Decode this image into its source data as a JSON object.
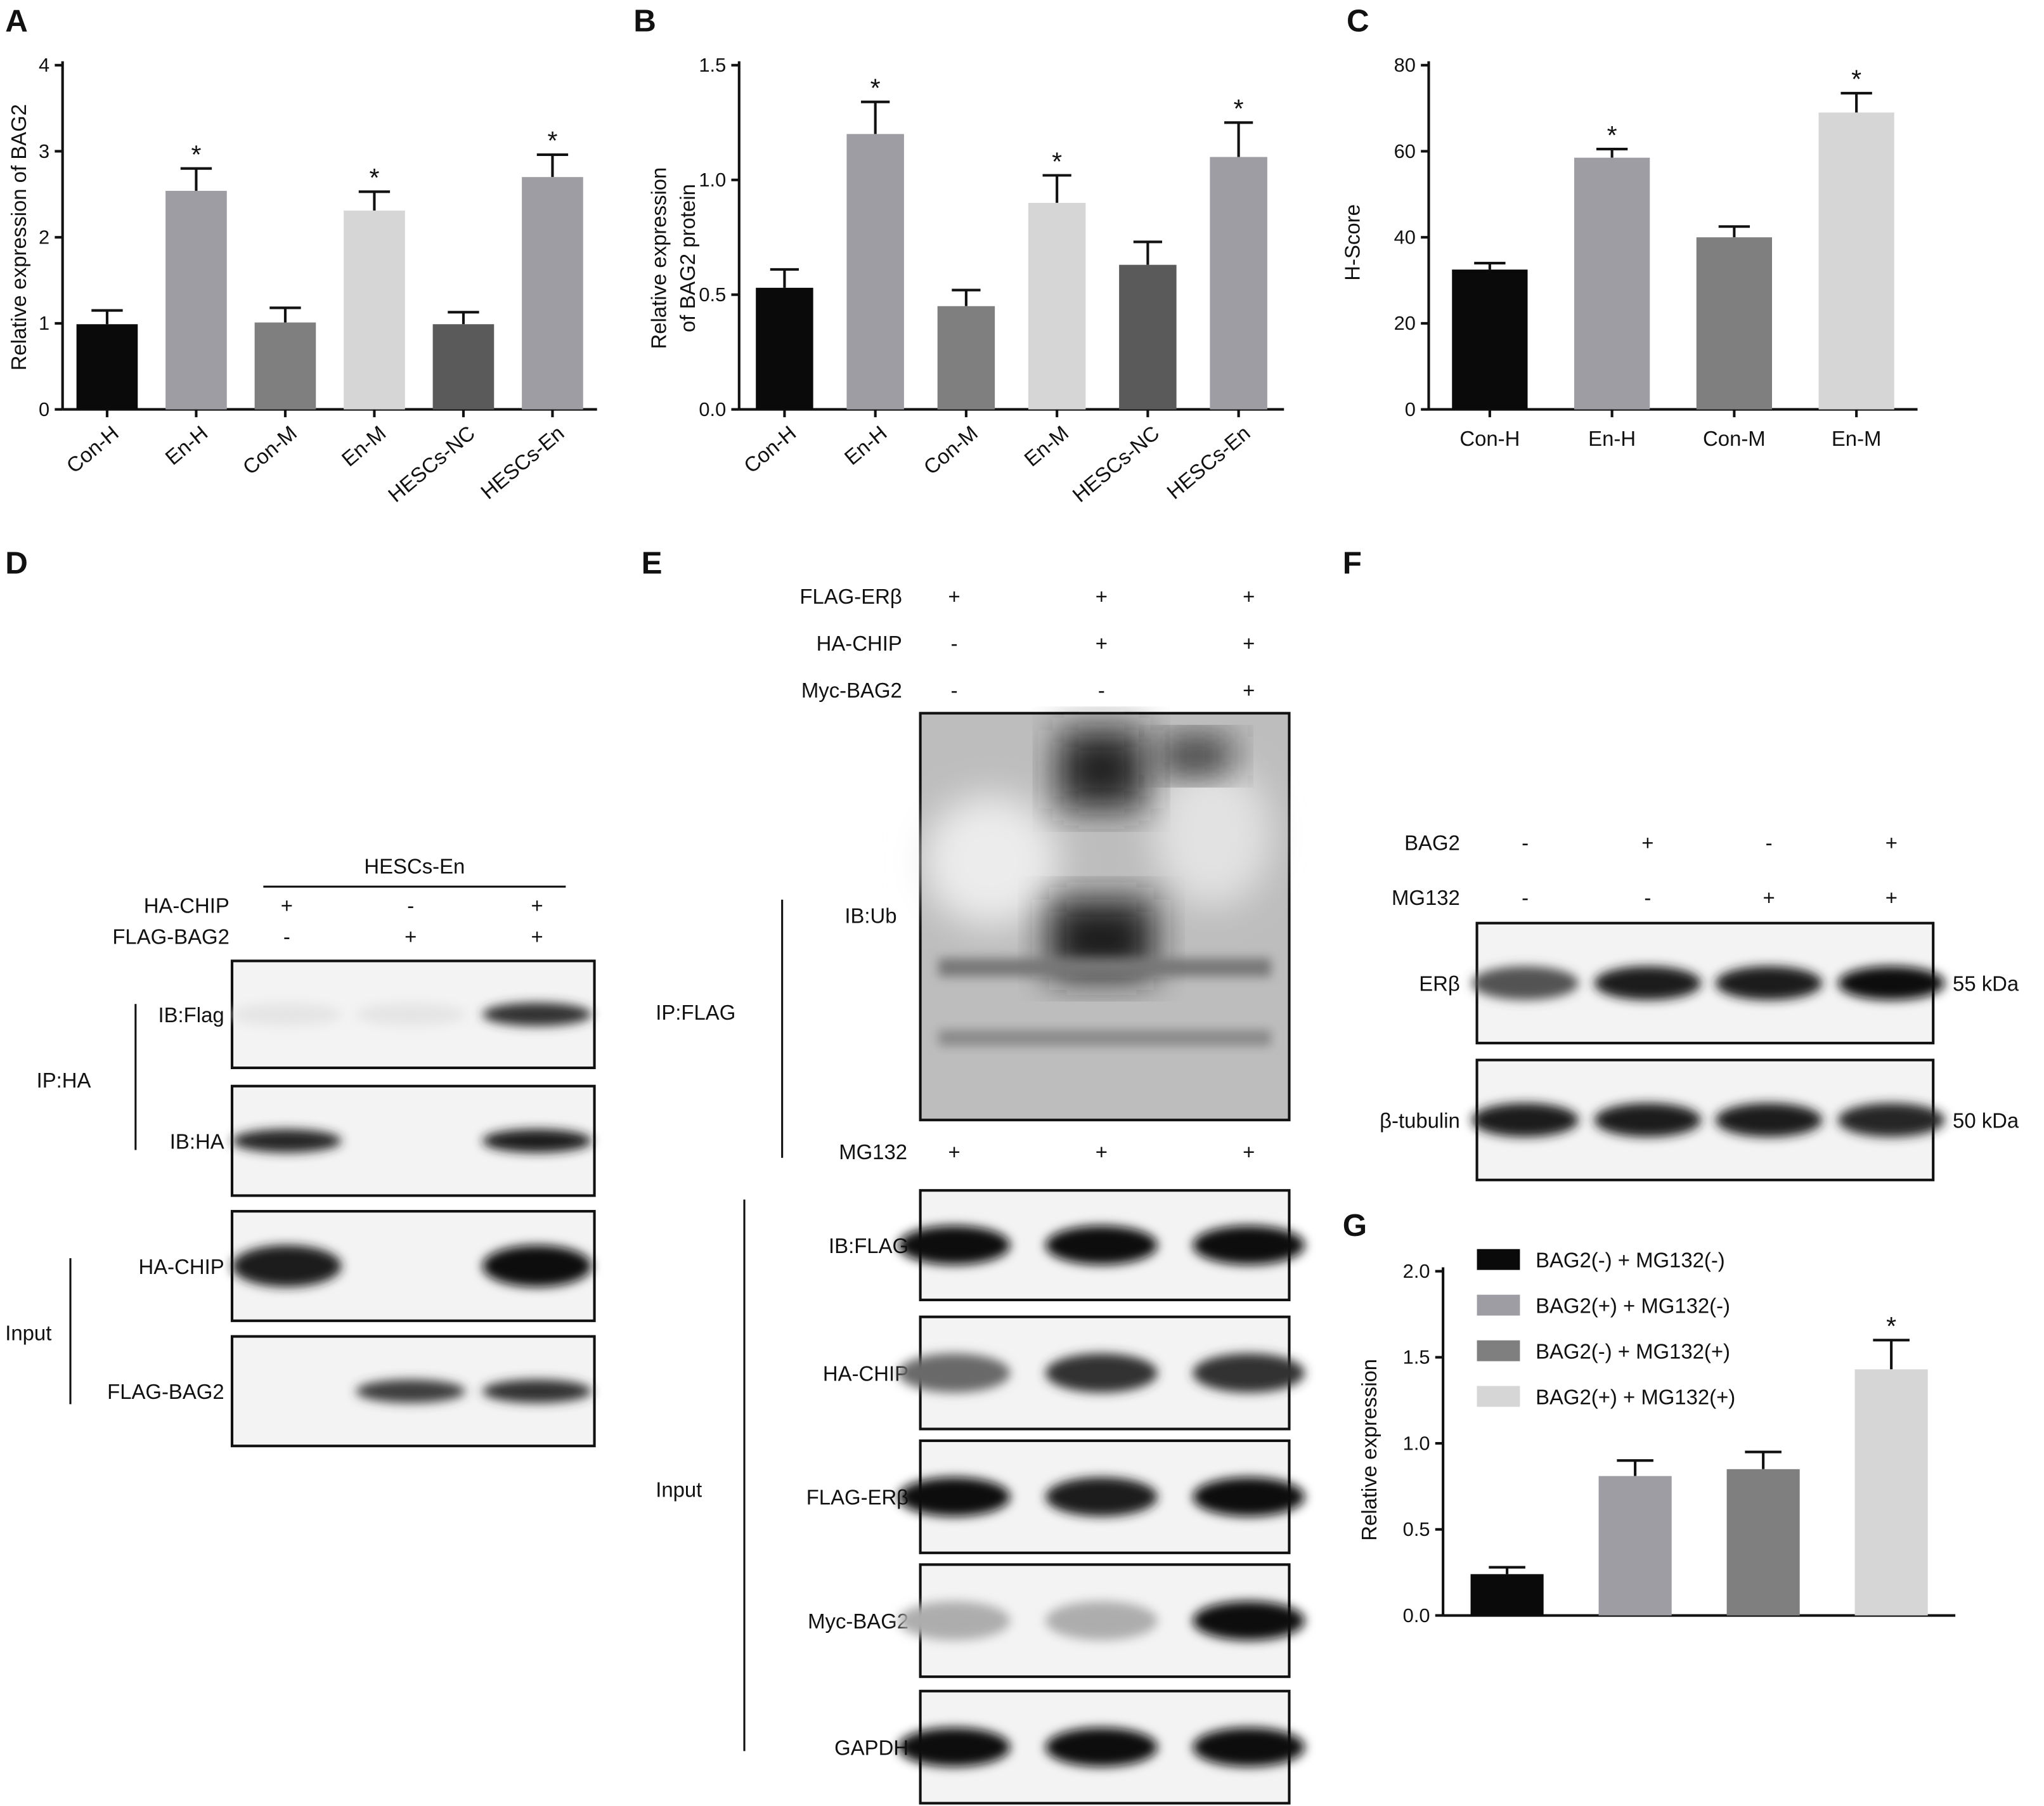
{
  "chart_data": [
    {
      "panel": "A",
      "type": "bar",
      "categories": [
        "Con-H",
        "En-H",
        "Con-M",
        "En-M",
        "HESCs-NC",
        "HESCs-En"
      ],
      "values": [
        0.99,
        2.54,
        1.01,
        2.31,
        0.99,
        2.7
      ],
      "errors": [
        0.16,
        0.26,
        0.17,
        0.22,
        0.14,
        0.26
      ],
      "significant": [
        false,
        true,
        false,
        true,
        false,
        true
      ],
      "colors": [
        "#0a0a0a",
        "#9d9da3",
        "#7f7f7f",
        "#d6d6d6",
        "#5a5a5a",
        "#9d9da3"
      ],
      "ylabel": "Relative expression of BAG2",
      "ylim": [
        0,
        4
      ],
      "yticks": [
        "0",
        "1",
        "2",
        "3",
        "4"
      ],
      "yticks_v": [
        0,
        1,
        2,
        3,
        4
      ]
    },
    {
      "panel": "B",
      "type": "bar",
      "categories": [
        "Con-H",
        "En-H",
        "Con-M",
        "En-M",
        "HESCs-NC",
        "HESCs-En"
      ],
      "values": [
        0.53,
        1.2,
        0.45,
        0.9,
        0.63,
        1.1
      ],
      "errors": [
        0.08,
        0.14,
        0.07,
        0.12,
        0.1,
        0.15
      ],
      "significant": [
        false,
        true,
        false,
        true,
        false,
        true
      ],
      "colors": [
        "#0a0a0a",
        "#9d9da3",
        "#7f7f7f",
        "#d6d6d6",
        "#5a5a5a",
        "#9d9da3"
      ],
      "ylabel_lines": [
        "Relative expression",
        "of BAG2 protein"
      ],
      "ylim": [
        0,
        1.5
      ],
      "yticks": [
        "0.0",
        "0.5",
        "1.0",
        "1.5"
      ],
      "yticks_v": [
        0,
        0.5,
        1.0,
        1.5
      ]
    },
    {
      "panel": "C",
      "type": "bar",
      "categories": [
        "Con-H",
        "En-H",
        "Con-M",
        "En-M"
      ],
      "values": [
        32.5,
        58.5,
        40.0,
        69.0
      ],
      "errors": [
        1.5,
        2.0,
        2.5,
        4.5
      ],
      "significant": [
        false,
        true,
        false,
        true
      ],
      "colors": [
        "#0a0a0a",
        "#9d9da3",
        "#7f7f7f",
        "#d6d6d6"
      ],
      "ylabel": "H-Score",
      "ylim": [
        0,
        80
      ],
      "yticks": [
        "0",
        "20",
        "40",
        "60",
        "80"
      ],
      "yticks_v": [
        0,
        20,
        40,
        60,
        80
      ]
    },
    {
      "panel": "G",
      "type": "bar",
      "series_names": [
        "BAG2(-) + MG132(-)",
        "BAG2(+) + MG132(-)",
        "BAG2(-) + MG132(+)",
        "BAG2(+) + MG132(+)"
      ],
      "values": [
        0.24,
        0.81,
        0.85,
        1.43
      ],
      "errors": [
        0.04,
        0.09,
        0.1,
        0.17
      ],
      "significant": [
        false,
        false,
        false,
        true
      ],
      "colors": [
        "#0a0a0a",
        "#9d9da3",
        "#7f7f7f",
        "#d6d6d6"
      ],
      "ylabel": "Relative expression",
      "ylim": [
        0,
        2.0
      ],
      "yticks": [
        "0.0",
        "0.5",
        "1.0",
        "1.5",
        "2.0"
      ],
      "yticks_v": [
        0,
        0.5,
        1.0,
        1.5,
        2.0
      ],
      "legend": "top-left"
    }
  ],
  "panels": {
    "A": "A",
    "B": "B",
    "C": "C",
    "D": "D",
    "E": "E",
    "F": "F",
    "G": "G"
  },
  "star": "*",
  "blotD": {
    "header": "HESCs-En",
    "row_labels": [
      "HA-CHIP",
      "FLAG-BAG2"
    ],
    "signs": [
      [
        "+",
        "-",
        "+"
      ],
      [
        "-",
        "+",
        "+"
      ]
    ],
    "ip_label": "IP:HA",
    "input_label": "Input",
    "bands": [
      "IB:Flag",
      "IB:HA",
      "HA-CHIP",
      "FLAG-BAG2"
    ],
    "intensity": [
      [
        0.05,
        0.05,
        0.85
      ],
      [
        0.9,
        0,
        0.95
      ],
      [
        0.95,
        0,
        1.0
      ],
      [
        0,
        0.8,
        0.85
      ]
    ]
  },
  "blotE": {
    "row_labels": [
      "FLAG-ERβ",
      "HA-CHIP",
      "Myc-BAG2"
    ],
    "signs": [
      [
        "+",
        "+",
        "+"
      ],
      [
        "-",
        "+",
        "+"
      ],
      [
        "-",
        "-",
        "+"
      ]
    ],
    "ub_label": "IB:Ub",
    "ip_label": "IP:FLAG",
    "mg_label": "MG132",
    "mg_signs": [
      "+",
      "+",
      "+"
    ],
    "input_label": "Input",
    "bands": [
      "IB:FLAG",
      "HA-CHIP",
      "FLAG-ERβ",
      "Myc-BAG2",
      "GAPDH"
    ],
    "intensity": [
      [
        1,
        1,
        1
      ],
      [
        0.6,
        0.85,
        0.85
      ],
      [
        1,
        0.95,
        1
      ],
      [
        0.3,
        0.3,
        1
      ],
      [
        1,
        1,
        1
      ]
    ]
  },
  "blotF": {
    "row_labels": [
      "BAG2",
      "MG132"
    ],
    "signs": [
      [
        "-",
        "+",
        "-",
        "+"
      ],
      [
        "-",
        "-",
        "+",
        "+"
      ]
    ],
    "bands": [
      "ERβ",
      "β-tubulin"
    ],
    "sizes": [
      "55 kDa",
      "50 kDa"
    ],
    "intensity": [
      [
        0.7,
        0.95,
        0.95,
        1
      ],
      [
        0.95,
        0.95,
        0.95,
        0.9
      ]
    ]
  }
}
